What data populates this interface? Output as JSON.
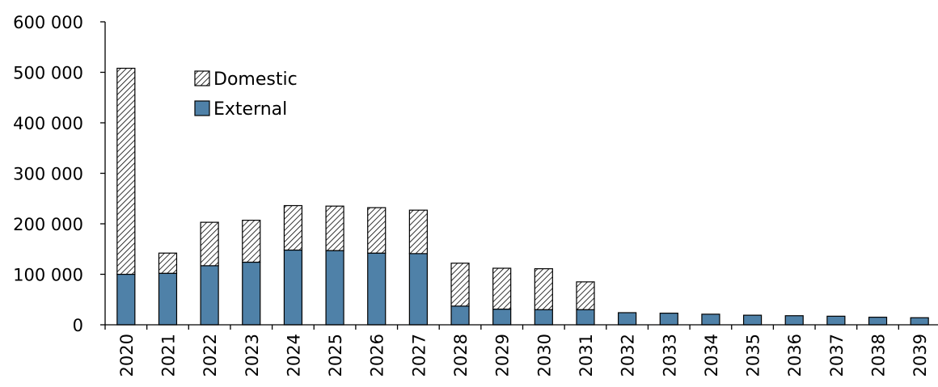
{
  "chart_data": {
    "type": "bar",
    "stacked": true,
    "title": "",
    "xlabel": "",
    "ylabel": "",
    "ylim": [
      0,
      600000
    ],
    "yticks": [
      0,
      100000,
      200000,
      300000,
      400000,
      500000,
      600000
    ],
    "ytick_labels": [
      "0",
      "100 000",
      "200 000",
      "300 000",
      "400 000",
      "500 000",
      "600 000"
    ],
    "grid": false,
    "legend_position": "upper-left",
    "categories": [
      "2020",
      "2021",
      "2022",
      "2023",
      "2024",
      "2025",
      "2026",
      "2027",
      "2028",
      "2029",
      "2030",
      "2031",
      "2032",
      "2033",
      "2034",
      "2035",
      "2036",
      "2037",
      "2038",
      "2039"
    ],
    "series": [
      {
        "name": "External",
        "color": "#4f81a8",
        "pattern": "solid",
        "values": [
          100000,
          102000,
          117000,
          124000,
          148000,
          147000,
          142000,
          141000,
          37000,
          31000,
          30000,
          30000,
          24000,
          23000,
          21000,
          19000,
          18000,
          17000,
          15000,
          14000
        ]
      },
      {
        "name": "Domestic",
        "color": "#ffffff",
        "pattern": "diagonal-hatch",
        "values": [
          408000,
          40000,
          86000,
          83000,
          88000,
          88000,
          90000,
          86000,
          85000,
          81000,
          81000,
          55000,
          0,
          0,
          0,
          0,
          0,
          0,
          0,
          0
        ]
      }
    ],
    "legend": [
      {
        "label": "Domestic",
        "pattern": "diagonal-hatch"
      },
      {
        "label": "External",
        "pattern": "solid"
      }
    ]
  }
}
